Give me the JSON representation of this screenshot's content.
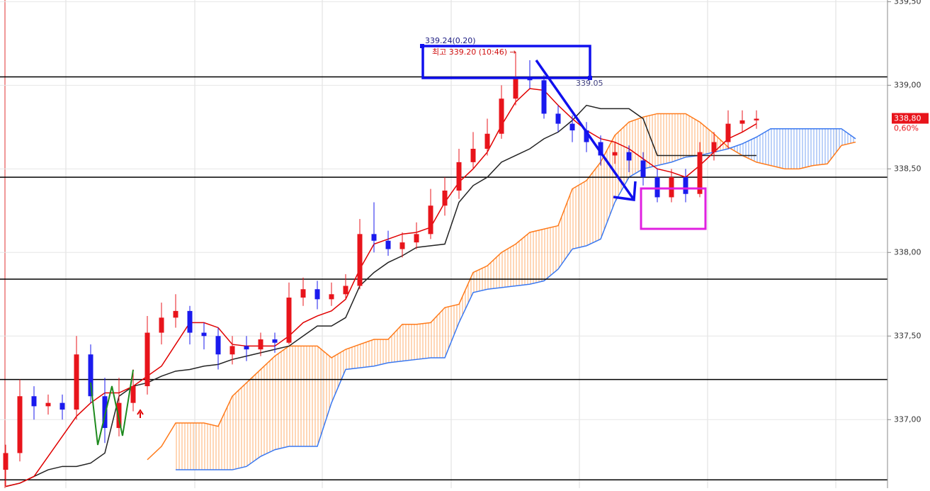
{
  "chart_data": {
    "type": "candlestick",
    "ylim": [
      336.59,
      339.51
    ],
    "yticks": [
      {
        "value": 337,
        "label": "337,00"
      },
      {
        "value": 337.5,
        "label": "337,50"
      },
      {
        "value": 338,
        "label": "338,00"
      },
      {
        "value": 338.5,
        "label": "338,50"
      },
      {
        "value": 339,
        "label": "339,00"
      },
      {
        "value": 339.5,
        "label": "339,50"
      }
    ],
    "grid": true,
    "candles": {
      "up_color": "#e8141b",
      "down_color": "#1a1aee",
      "open": [
        336.7,
        336.8,
        337.14,
        337.08,
        337.1,
        337.06,
        337.39,
        337.14,
        336.95,
        337.1,
        337.2,
        337.52,
        337.61,
        337.65,
        337.52,
        337.5,
        337.39,
        337.44,
        337.42,
        337.48,
        337.46,
        337.73,
        337.78,
        337.72,
        337.75,
        337.8,
        338.11,
        338.07,
        338.02,
        338.06,
        338.11,
        338.28,
        338.37,
        338.54,
        338.62,
        338.71,
        338.92,
        339.05,
        339.03,
        338.83,
        338.77,
        338.73,
        338.66,
        338.58,
        338.6,
        338.55,
        338.45,
        338.33,
        338.45,
        338.35,
        338.6,
        338.66,
        338.77,
        338.79
      ],
      "high": [
        336.85,
        337.24,
        337.2,
        337.15,
        337.15,
        337.5,
        337.45,
        337.25,
        337.25,
        337.3,
        337.62,
        337.7,
        337.75,
        337.68,
        337.58,
        337.55,
        337.5,
        337.5,
        337.52,
        337.52,
        337.82,
        337.85,
        337.83,
        337.82,
        337.87,
        338.2,
        338.3,
        338.13,
        338.12,
        338.18,
        338.38,
        338.45,
        338.62,
        338.72,
        338.8,
        339.0,
        339.2,
        339.15,
        339.06,
        338.88,
        338.82,
        338.78,
        338.7,
        338.66,
        338.64,
        338.6,
        338.5,
        338.5,
        338.5,
        338.66,
        338.72,
        338.85,
        338.85,
        338.85
      ],
      "low": [
        336.6,
        336.75,
        337.0,
        337.03,
        337.0,
        337.0,
        337.1,
        336.86,
        336.9,
        337.05,
        337.15,
        337.45,
        337.55,
        337.45,
        337.42,
        337.3,
        337.33,
        337.35,
        337.38,
        337.4,
        337.45,
        337.68,
        337.66,
        337.68,
        337.72,
        337.78,
        338.0,
        337.98,
        337.97,
        338.02,
        338.08,
        338.22,
        338.32,
        338.5,
        338.58,
        338.68,
        338.88,
        338.98,
        338.8,
        338.72,
        338.66,
        338.6,
        338.52,
        338.53,
        338.48,
        338.4,
        338.3,
        338.3,
        338.3,
        338.33,
        338.55,
        338.62,
        338.72,
        338.74
      ],
      "close": [
        336.8,
        337.14,
        337.08,
        337.1,
        337.06,
        337.39,
        337.14,
        336.95,
        337.1,
        337.2,
        337.52,
        337.61,
        337.65,
        337.52,
        337.5,
        337.39,
        337.44,
        337.42,
        337.48,
        337.46,
        337.73,
        337.78,
        337.72,
        337.75,
        337.8,
        338.11,
        338.07,
        338.02,
        338.06,
        338.11,
        338.28,
        338.37,
        338.54,
        338.62,
        338.71,
        338.92,
        339.05,
        339.03,
        338.83,
        338.77,
        338.73,
        338.66,
        338.58,
        338.6,
        338.55,
        338.45,
        338.33,
        338.45,
        338.35,
        338.6,
        338.66,
        338.77,
        338.79,
        338.8
      ]
    },
    "lines": [
      {
        "color": "#222222",
        "values": [
          336.6,
          336.62,
          336.66,
          336.7,
          336.72,
          336.72,
          336.74,
          336.8,
          337.14,
          337.2,
          337.22,
          337.26,
          337.29,
          337.3,
          337.32,
          337.33,
          337.36,
          337.38,
          337.4,
          337.42,
          337.44,
          337.5,
          337.56,
          337.56,
          337.61,
          337.8,
          337.88,
          337.94,
          337.98,
          338.03,
          338.04,
          338.05,
          338.3,
          338.4,
          338.45,
          338.54,
          338.58,
          338.62,
          338.68,
          338.72,
          338.79,
          338.88,
          338.86,
          338.86,
          338.86,
          338.8,
          338.58,
          338.58,
          338.58,
          338.58,
          338.58,
          338.58,
          338.58,
          338.58
        ]
      },
      {
        "color": "#e00000",
        "values": [
          336.6,
          336.62,
          336.66,
          336.78,
          336.9,
          337.02,
          337.1,
          337.16,
          337.16,
          337.2,
          337.26,
          337.32,
          337.45,
          337.58,
          337.58,
          337.55,
          337.45,
          337.44,
          337.44,
          337.44,
          337.5,
          337.58,
          337.62,
          337.65,
          337.72,
          337.9,
          338.05,
          338.08,
          338.11,
          338.12,
          338.15,
          338.3,
          338.42,
          338.5,
          338.6,
          338.76,
          338.9,
          338.98,
          338.97,
          338.88,
          338.8,
          338.73,
          338.68,
          338.66,
          338.62,
          338.56,
          338.5,
          338.48,
          338.45,
          338.52,
          338.6,
          338.68,
          338.72,
          338.77
        ]
      }
    ],
    "cloud": {
      "a_color": "#ff7a1a",
      "b_color": "#3a78f0",
      "a": [
        null,
        null,
        null,
        null,
        null,
        null,
        null,
        null,
        null,
        null,
        336.76,
        336.84,
        336.98,
        336.98,
        336.98,
        336.96,
        337.14,
        337.22,
        337.3,
        337.38,
        337.44,
        337.44,
        337.44,
        337.37,
        337.42,
        337.45,
        337.48,
        337.48,
        337.57,
        337.57,
        337.58,
        337.67,
        337.69,
        337.88,
        337.92,
        338.0,
        338.05,
        338.12,
        338.14,
        338.16,
        338.38,
        338.43,
        338.54,
        338.7,
        338.78,
        338.81,
        338.83,
        338.83,
        338.83,
        338.78,
        338.71,
        338.63,
        338.58,
        338.54,
        338.52,
        338.5,
        338.5,
        338.52,
        338.53,
        338.64,
        338.66
      ],
      "b": [
        null,
        null,
        null,
        null,
        null,
        null,
        null,
        null,
        null,
        null,
        null,
        null,
        336.7,
        336.7,
        336.7,
        336.7,
        336.7,
        336.72,
        336.78,
        336.82,
        336.84,
        336.84,
        336.84,
        337.1,
        337.3,
        337.31,
        337.32,
        337.34,
        337.35,
        337.36,
        337.37,
        337.37,
        337.58,
        337.76,
        337.78,
        337.79,
        337.8,
        337.81,
        337.83,
        337.9,
        338.02,
        338.04,
        338.08,
        338.3,
        338.45,
        338.5,
        338.52,
        338.54,
        338.57,
        338.58,
        338.6,
        338.62,
        338.65,
        338.69,
        338.74,
        338.74,
        338.74,
        338.74,
        338.74,
        338.74,
        338.68
      ]
    },
    "hlines": [
      339.05,
      338.45,
      337.84,
      337.24,
      336.64
    ],
    "annotations": [
      "339.24(0.20)",
      "최고 339.20 (10:46) →",
      "339.05"
    ],
    "last_price": {
      "value": 338.8,
      "label": "338,80"
    },
    "change": {
      "value": 0.6,
      "label": "0,60%"
    }
  }
}
